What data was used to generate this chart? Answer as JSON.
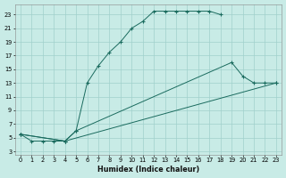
{
  "xlabel": "Humidex (Indice chaleur)",
  "bg_color": "#c8ebe6",
  "grid_color": "#a0d0cc",
  "line_color": "#1a6b5e",
  "xlim": [
    -0.5,
    23.5
  ],
  "ylim": [
    2.5,
    24.5
  ],
  "xtick_labels": [
    "0",
    "1",
    "2",
    "3",
    "4",
    "5",
    "6",
    "7",
    "8",
    "9",
    "10",
    "11",
    "12",
    "13",
    "14",
    "15",
    "16",
    "17",
    "18",
    "19",
    "20",
    "21",
    "22",
    "23"
  ],
  "xticks": [
    0,
    1,
    2,
    3,
    4,
    5,
    6,
    7,
    8,
    9,
    10,
    11,
    12,
    13,
    14,
    15,
    16,
    17,
    18,
    19,
    20,
    21,
    22,
    23
  ],
  "yticks": [
    3,
    5,
    7,
    9,
    11,
    13,
    15,
    17,
    19,
    21,
    23
  ],
  "lines": [
    {
      "x": [
        0,
        1,
        2,
        3,
        4,
        5,
        6,
        7,
        8,
        9,
        10,
        11,
        12,
        13,
        14,
        15,
        16,
        17,
        18
      ],
      "y": [
        5.5,
        4.5,
        4.5,
        4.5,
        4.5,
        6,
        13,
        15.5,
        17.5,
        19,
        21,
        22,
        23.5,
        23.5,
        23.5,
        23.5,
        23.5,
        23.5,
        23
      ]
    },
    {
      "x": [
        0,
        4,
        5,
        19,
        20,
        21,
        22,
        23
      ],
      "y": [
        5.5,
        4.5,
        6,
        16,
        14,
        13,
        13,
        13
      ]
    },
    {
      "x": [
        0,
        4,
        23
      ],
      "y": [
        5.5,
        4.5,
        13
      ]
    }
  ]
}
